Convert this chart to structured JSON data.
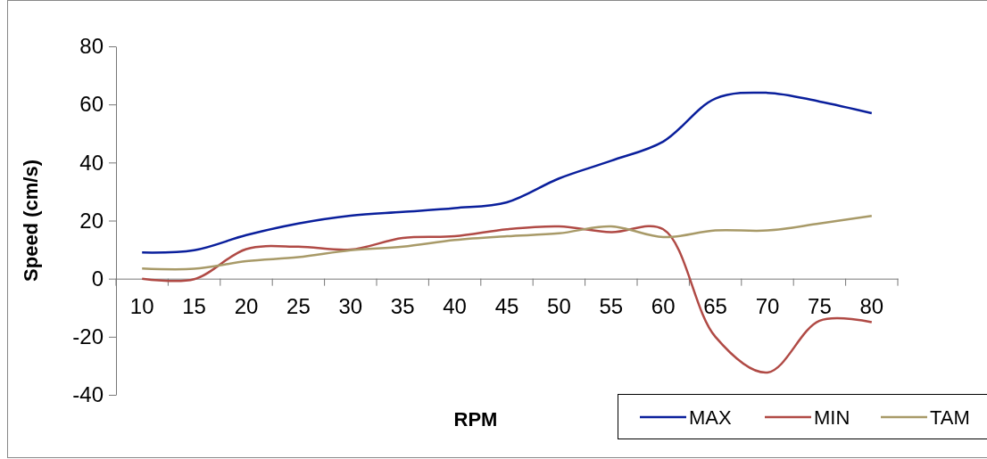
{
  "chart_data": {
    "type": "line",
    "xlabel": "RPM",
    "ylabel": "Speed (cm/s)",
    "categories": [
      "10",
      "15",
      "20",
      "25",
      "30",
      "35",
      "40",
      "45",
      "50",
      "55",
      "60",
      "65",
      "70",
      "75",
      "80"
    ],
    "ylim": [
      -40,
      80
    ],
    "yticks": [
      -40,
      -20,
      0,
      20,
      40,
      60,
      80
    ],
    "grid": false,
    "legend": "bottom right",
    "marker": "none",
    "line_style": "solid",
    "series": [
      {
        "name": "MAX",
        "color": "#0a1f9c",
        "values": [
          9,
          9.8,
          15,
          19,
          21.7,
          23,
          24.3,
          26.3,
          34.5,
          40.6,
          47.2,
          62,
          64,
          61,
          57
        ]
      },
      {
        "name": "MIN",
        "color": "#b04a45",
        "values": [
          0,
          -0.2,
          10.2,
          11,
          10,
          14,
          14.6,
          17,
          18,
          16,
          17,
          -20,
          -32.3,
          -14.5,
          -15
        ]
      },
      {
        "name": "TAM",
        "color": "#a89a68",
        "values": [
          3.5,
          3.4,
          6,
          7.4,
          9.8,
          11,
          13.3,
          14.6,
          15.6,
          18,
          14.3,
          16.6,
          16.6,
          19,
          21.6
        ]
      }
    ]
  }
}
